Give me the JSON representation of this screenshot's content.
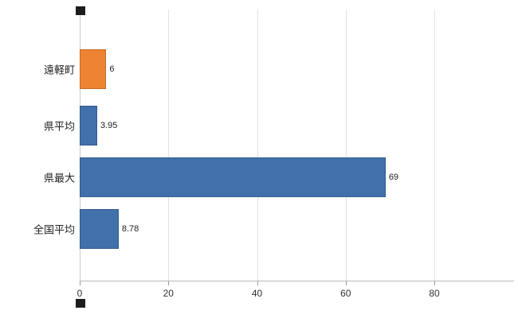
{
  "chart_data": {
    "type": "bar",
    "orientation": "horizontal",
    "title": "",
    "xlabel": "",
    "ylabel": "",
    "categories": [
      "遠軽町",
      "県平均",
      "県最大",
      "全国平均"
    ],
    "values": [
      6,
      3.95,
      69,
      8.78
    ],
    "value_labels": [
      "6",
      "3.95",
      "69",
      "8.78"
    ],
    "series_colors": [
      "#ee8331",
      "#4170ab",
      "#4170ab",
      "#4170ab"
    ],
    "xlim": [
      0,
      80
    ],
    "x_ticks": [
      0,
      20,
      40,
      60,
      80
    ],
    "x_tick_labels": [
      "0",
      "20",
      "40",
      "60",
      "80"
    ],
    "grid": "vertical-on",
    "legend": "none"
  },
  "colors": {
    "background": "#ffffff",
    "gridline": "#e3e3e3",
    "axis": "#b5b5b5",
    "text": "#222222",
    "axis_cap": "#1c1c1c"
  }
}
